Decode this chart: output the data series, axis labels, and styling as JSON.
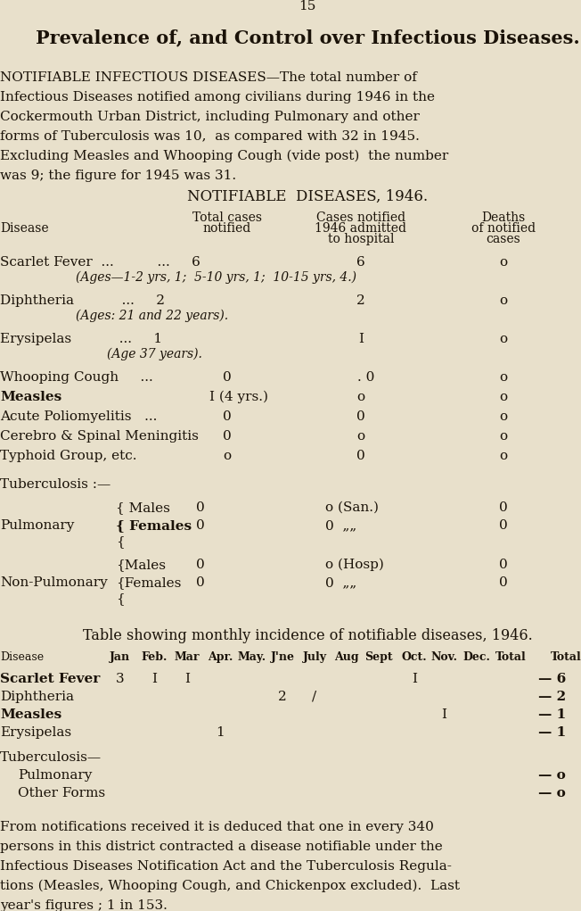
{
  "bg_color": "#e8e0cb",
  "text_color": "#1a1208",
  "page_number": "15",
  "title": "Prevalence of, and Control over Infectious Diseases.",
  "para1_lines": [
    "NOTIFIABLE INFECTIOUS DISEASES—The total number of",
    "Infectious Diseases notified among civilians during 1946 in the",
    "Cockermouth Urban District, including Pulmonary and other",
    "forms of Tuberculosis was 10,  as compared with 32 in 1945.",
    "Excluding Measles and Whooping Cough (vide post)  the number",
    "was 9; the figure for 1945 was 31."
  ],
  "table1_title": "NOTIFIABLE  DISEASES, 1946.",
  "footer_lines": [
    "From notifications received it is deduced that one in every 340",
    "persons in this district contracted a disease notifiable under the",
    "Infectious Diseases Notification Act and the Tuberculosis Regula-",
    "tions (Measles, Whooping Cough, and Chickenpox excluded).  Last",
    "year's figures ; 1 in 153."
  ]
}
